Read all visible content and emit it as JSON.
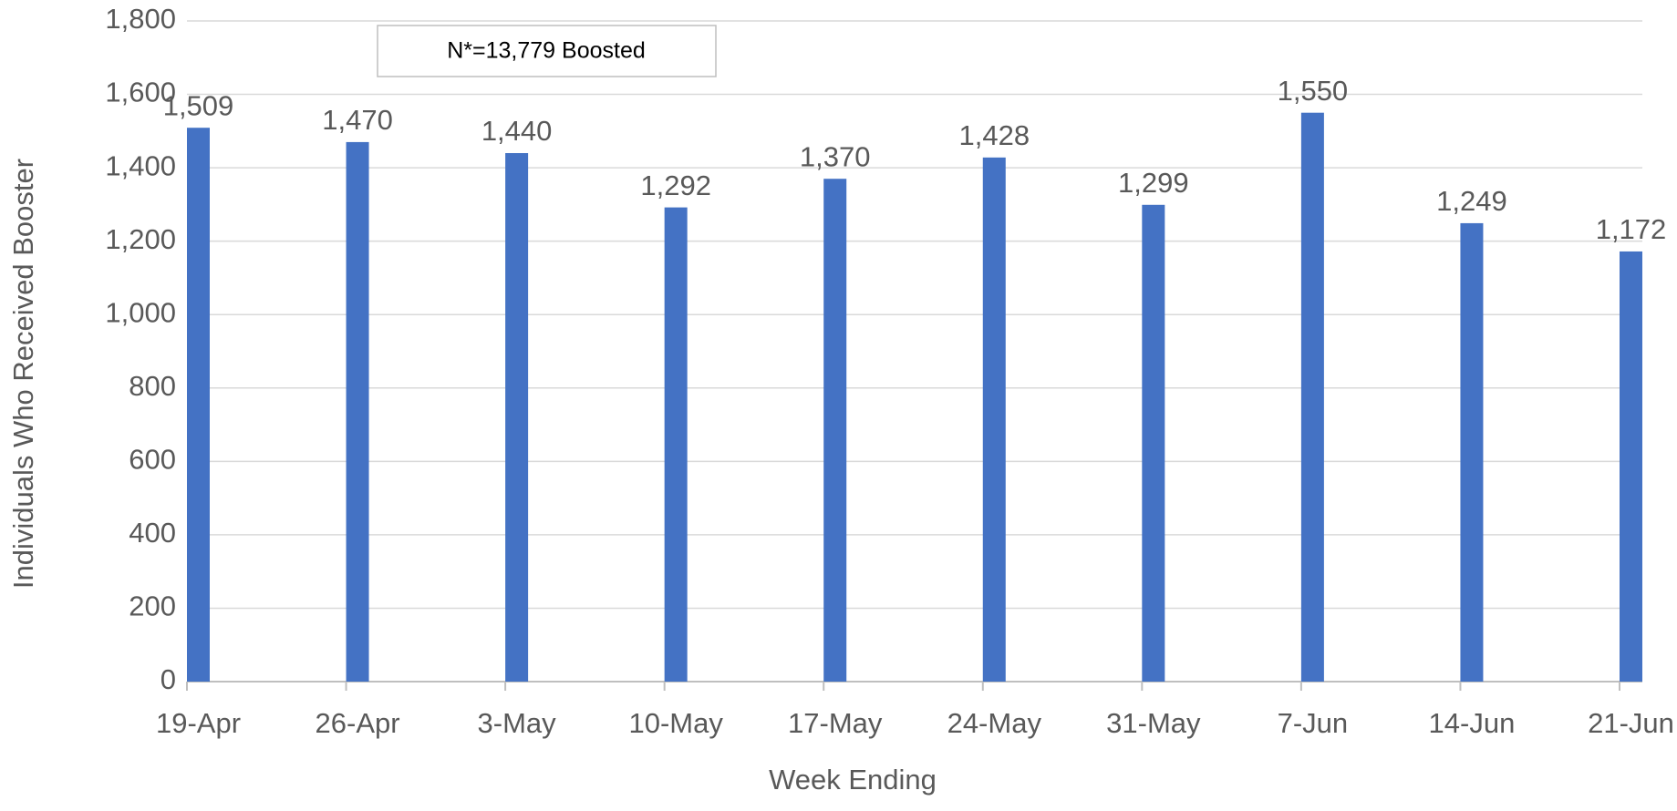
{
  "chart_data": {
    "type": "bar",
    "annotation": "N*=13,779 Boosted",
    "x_label": "Week Ending",
    "y_label": "Individuals Who Received Booster",
    "categories": [
      "19-Apr",
      "26-Apr",
      "3-May",
      "10-May",
      "17-May",
      "24-May",
      "31-May",
      "7-Jun",
      "14-Jun",
      "21-Jun"
    ],
    "values": [
      1509,
      1470,
      1440,
      1292,
      1370,
      1428,
      1299,
      1550,
      1249,
      1172
    ],
    "value_labels": [
      "1,509",
      "1,470",
      "1,440",
      "1,292",
      "1,370",
      "1,428",
      "1,299",
      "1,550",
      "1,249",
      "1,172"
    ],
    "color": "#4472c4",
    "ylim": [
      0,
      1800
    ],
    "yticks": [
      0,
      200,
      400,
      600,
      800,
      {
        "value": 1000,
        "label": "1,000"
      },
      {
        "value": 1200,
        "label": "1,200"
      },
      {
        "value": 1400,
        "label": "1,400"
      },
      {
        "value": 1600,
        "label": "1,600"
      },
      {
        "value": 1800,
        "label": "1,800"
      }
    ],
    "grid": true
  }
}
